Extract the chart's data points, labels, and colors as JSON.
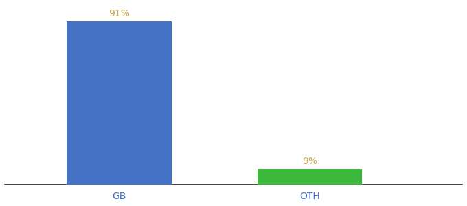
{
  "categories": [
    "GB",
    "OTH"
  ],
  "values": [
    91,
    9
  ],
  "bar_colors": [
    "#4472c4",
    "#3cb83c"
  ],
  "label_color": "#c8a84b",
  "axis_label_color": "#4472c4",
  "background_color": "#ffffff",
  "value_labels": [
    "91%",
    "9%"
  ],
  "ylim": [
    0,
    100
  ],
  "bar_width": 0.55,
  "label_fontsize": 10,
  "tick_fontsize": 10,
  "x_positions": [
    1,
    2
  ],
  "xlim": [
    0.4,
    2.8
  ]
}
